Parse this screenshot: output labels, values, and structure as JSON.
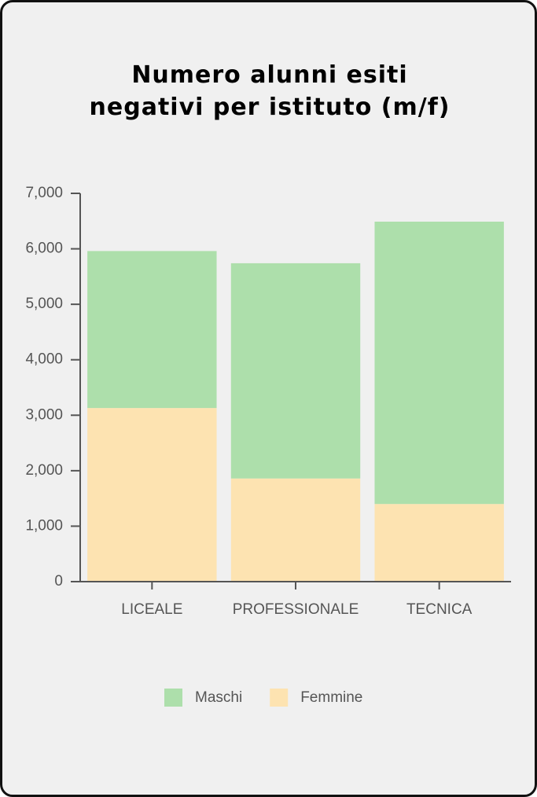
{
  "chart_data": {
    "type": "stacked-bar",
    "title": "Numero alunni esiti negativi per istituto (m/f)",
    "categories": [
      "LICEALE",
      "PROFESSIONALE",
      "TECNICA"
    ],
    "series": [
      {
        "name": "Maschi",
        "color": "#addfab",
        "values": [
          2830,
          3880,
          5090
        ]
      },
      {
        "name": "Femmine",
        "color": "#fde3b1",
        "values": [
          3130,
          1860,
          1400
        ]
      }
    ],
    "ylim": [
      0,
      7000
    ],
    "yticks": [
      0,
      {
        "value": 1000,
        "label": "1,000"
      },
      {
        "value": 2000,
        "label": "2,000"
      },
      {
        "value": 3000,
        "label": "3,000"
      },
      {
        "value": 4000,
        "label": "4,000"
      },
      {
        "value": 5000,
        "label": "5,000"
      },
      {
        "value": 6000,
        "label": "6,000"
      },
      {
        "value": 7000,
        "label": "7,000"
      }
    ],
    "legend": "bottom"
  }
}
